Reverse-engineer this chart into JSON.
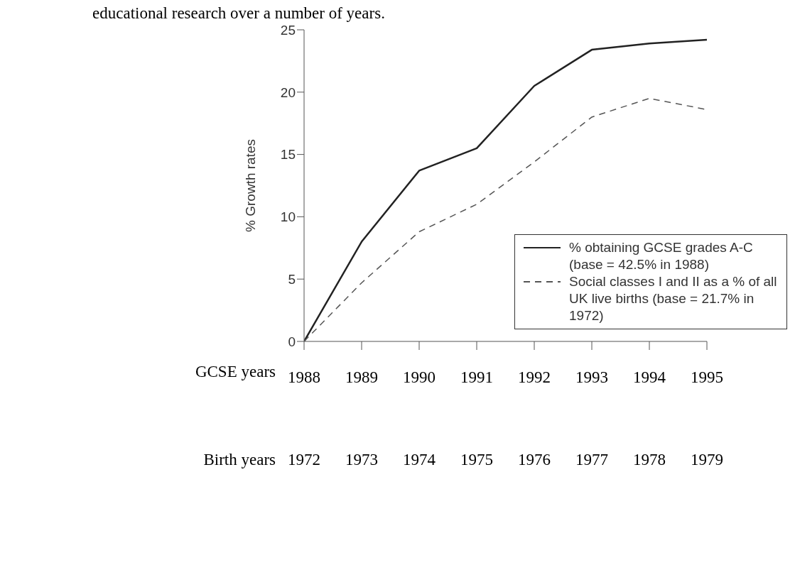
{
  "chart_data": {
    "type": "line",
    "annotations": [
      "educational research over a number of years."
    ],
    "ylabel": "% Growth rates",
    "xlabel": "GCSE years",
    "x2label": "Birth years",
    "x": [
      1988,
      1989,
      1990,
      1991,
      1992,
      1993,
      1994,
      1995
    ],
    "xlim": [
      1988,
      1995
    ],
    "xticks": [
      1988,
      1989,
      1990,
      1991,
      1992,
      1993,
      1994,
      1995
    ],
    "x2lim": [
      1972,
      1979
    ],
    "x2ticks": [
      1972,
      1973,
      1974,
      1975,
      1976,
      1977,
      1978,
      1979
    ],
    "ylim": [
      0,
      25
    ],
    "yticks": [
      0,
      5,
      10,
      15,
      20,
      25
    ],
    "series": [
      {
        "name": "% obtaining GCSE grades A-C (base = 42.5% in 1988)",
        "color": "#222222",
        "line_style": "solid",
        "values": [
          0,
          8.0,
          13.7,
          15.5,
          20.5,
          23.4,
          23.9,
          24.2
        ]
      },
      {
        "name": "Social classes I and II as a % of all UK live births (base = 21.7% in 1972)",
        "color": "#555555",
        "line_style": "dashed",
        "values": [
          0,
          4.7,
          8.8,
          11.0,
          14.4,
          18.0,
          19.5,
          18.6
        ]
      }
    ],
    "grid": false,
    "legend": "bottom right",
    "marker": "none"
  }
}
